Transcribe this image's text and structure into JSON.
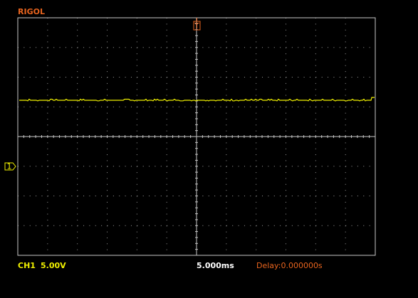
{
  "header": {
    "brand": "RIGOL"
  },
  "markers": {
    "trigger": "T",
    "channel": "1"
  },
  "status": {
    "channel": "CH1",
    "scale": "5.00V",
    "timebase": "5.000ms",
    "delay": "Delay:0.000000s"
  }
}
